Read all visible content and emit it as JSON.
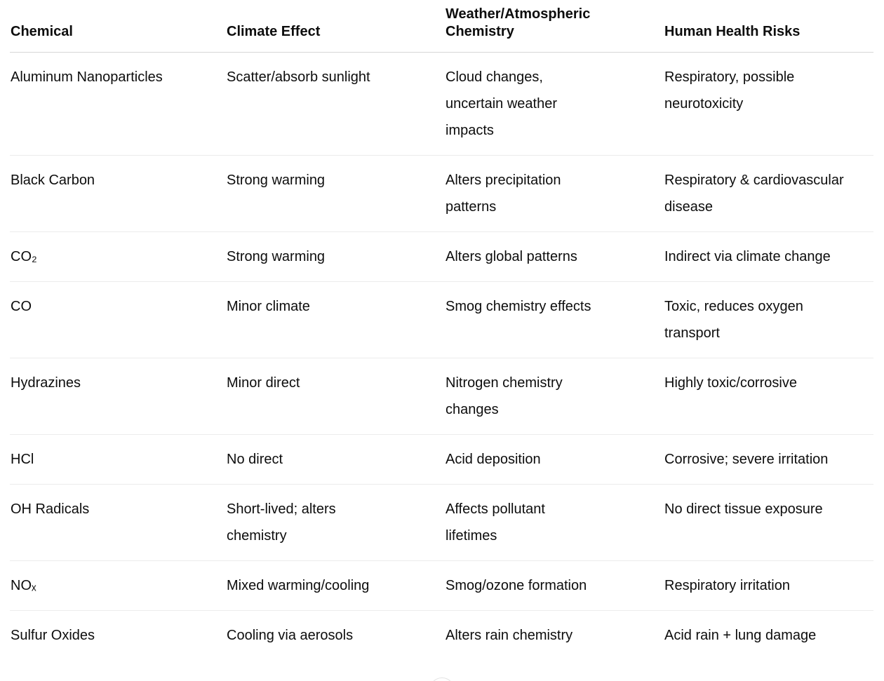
{
  "table": {
    "columns": [
      {
        "id": "chemical",
        "lines": [
          "Chemical"
        ]
      },
      {
        "id": "climate-effect",
        "lines": [
          "Climate Effect"
        ]
      },
      {
        "id": "weather-atmospheric-chemistry",
        "lines": [
          "Weather/Atmospheric",
          "Chemistry"
        ]
      },
      {
        "id": "human-health-risks",
        "lines": [
          "Human Health Risks"
        ]
      }
    ],
    "rows": [
      {
        "cells": [
          [
            "Aluminum Nanoparticles"
          ],
          [
            "Scatter/absorb sunlight"
          ],
          [
            "Cloud changes,",
            "uncertain weather",
            "impacts"
          ],
          [
            "Respiratory, possible",
            "neurotoxicity"
          ]
        ]
      },
      {
        "cells": [
          [
            "Black Carbon"
          ],
          [
            "Strong warming"
          ],
          [
            "Alters precipitation",
            "patterns"
          ],
          [
            "Respiratory & cardiovascular",
            "disease"
          ]
        ]
      },
      {
        "cells": [
          [
            "CO₂"
          ],
          [
            "Strong warming"
          ],
          [
            "Alters global patterns"
          ],
          [
            "Indirect via climate change"
          ]
        ]
      },
      {
        "cells": [
          [
            "CO"
          ],
          [
            "Minor climate"
          ],
          [
            "Smog chemistry effects"
          ],
          [
            "Toxic, reduces oxygen",
            "transport"
          ]
        ]
      },
      {
        "cells": [
          [
            "Hydrazines"
          ],
          [
            "Minor direct"
          ],
          [
            "Nitrogen chemistry",
            "changes"
          ],
          [
            "Highly toxic/corrosive"
          ]
        ]
      },
      {
        "cells": [
          [
            "HCl"
          ],
          [
            "No direct"
          ],
          [
            "Acid deposition"
          ],
          [
            "Corrosive; severe irritation"
          ]
        ]
      },
      {
        "cells": [
          [
            "OH Radicals"
          ],
          [
            "Short-lived; alters",
            "chemistry"
          ],
          [
            "Affects pollutant",
            "lifetimes"
          ],
          [
            "No direct tissue exposure"
          ]
        ]
      },
      {
        "cells": [
          [
            "NOₓ"
          ],
          [
            "Mixed warming/cooling"
          ],
          [
            "Smog/ozone formation"
          ],
          [
            "Respiratory irritation"
          ]
        ]
      },
      {
        "cells": [
          [
            "Sulfur Oxides"
          ],
          [
            "Cooling via aerosols"
          ],
          [
            "Alters rain chemistry"
          ],
          [
            "Acid rain + lung damage"
          ]
        ]
      }
    ]
  },
  "colors": {
    "text": "#0d0d0d",
    "header_divider": "#d6d6d6",
    "row_divider": "#ececec",
    "background": "#ffffff",
    "scroll_button_border": "#e3e3e3"
  },
  "scroll_button": {
    "icon": "chevron-down"
  }
}
